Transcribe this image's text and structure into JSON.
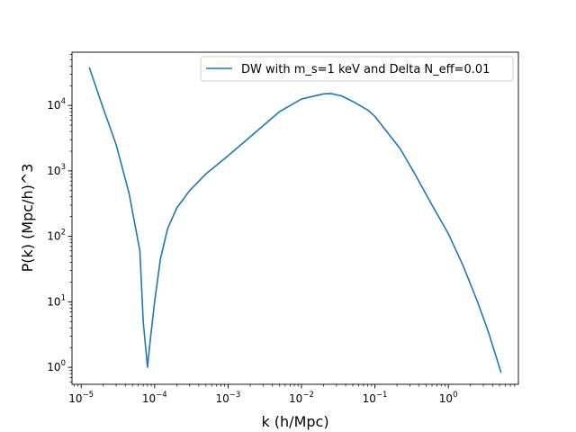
{
  "chart_data": {
    "type": "line",
    "title": "",
    "xlabel": "k (h/Mpc)",
    "ylabel": "P(k) (Mpc/h)^3",
    "xscale": "log",
    "yscale": "log",
    "xlim": [
      7.5e-06,
      9.0
    ],
    "ylim": [
      0.55,
      65000
    ],
    "x_ticks": [
      {
        "value": 1e-05,
        "base": "10",
        "exp": "−5"
      },
      {
        "value": 0.0001,
        "base": "10",
        "exp": "−4"
      },
      {
        "value": 0.001,
        "base": "10",
        "exp": "−3"
      },
      {
        "value": 0.01,
        "base": "10",
        "exp": "−2"
      },
      {
        "value": 0.1,
        "base": "10",
        "exp": "−1"
      },
      {
        "value": 1,
        "base": "10",
        "exp": "0"
      }
    ],
    "y_ticks": [
      {
        "value": 1,
        "base": "10",
        "exp": "0"
      },
      {
        "value": 10,
        "base": "10",
        "exp": "1"
      },
      {
        "value": 100,
        "base": "10",
        "exp": "2"
      },
      {
        "value": 1000,
        "base": "10",
        "exp": "3"
      },
      {
        "value": 10000,
        "base": "10",
        "exp": "4"
      }
    ],
    "grid": false,
    "legend_position": "top-right",
    "colors": {
      "series": "#1f77b4"
    },
    "series": [
      {
        "name": "DW with m_s=1 keV and Delta N_eff=0.01",
        "x": [
          1.3e-05,
          2e-05,
          3e-05,
          4.5e-05,
          6.3e-05,
          7e-05,
          8e-05,
          8.5e-05,
          0.0001,
          0.00012,
          0.00015,
          0.0002,
          0.0003,
          0.0005,
          0.001,
          0.002,
          0.005,
          0.01,
          0.02,
          0.025,
          0.035,
          0.05,
          0.08,
          0.1,
          0.15,
          0.22,
          0.35,
          0.6,
          1.0,
          1.6,
          2.5,
          3.5,
          5.2
        ],
        "y": [
          37000,
          9000,
          2500,
          450,
          60,
          5,
          1.0,
          2,
          10,
          45,
          130,
          270,
          500,
          900,
          1700,
          3300,
          8000,
          12500,
          15000,
          15200,
          14000,
          11500,
          8500,
          6800,
          3800,
          2200,
          900,
          300,
          110,
          35,
          10,
          3.5,
          0.85
        ]
      }
    ]
  }
}
